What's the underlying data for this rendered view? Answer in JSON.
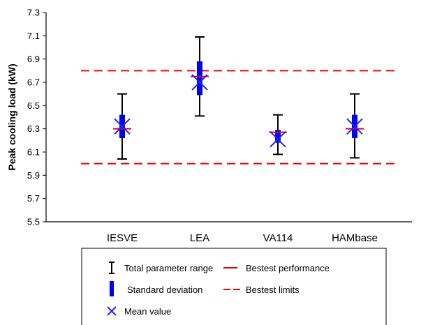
{
  "chart_data": {
    "type": "scatter",
    "ylabel": "Peak cooling load (kW)",
    "xlabel": "",
    "title": "",
    "ylim": [
      5.5,
      7.3
    ],
    "yticks": [
      5.5,
      5.7,
      5.9,
      6.1,
      6.3,
      6.5,
      6.7,
      6.9,
      7.1,
      7.3
    ],
    "grid": false,
    "categories": [
      "IESVE",
      "LEA",
      "VA114",
      "HAMbase"
    ],
    "range_min": [
      6.04,
      6.41,
      6.08,
      6.05
    ],
    "range_max": [
      6.6,
      7.09,
      6.42,
      6.6
    ],
    "std_low": [
      6.22,
      6.59,
      6.18,
      6.22
    ],
    "std_high": [
      6.42,
      6.88,
      6.29,
      6.42
    ],
    "mean": [
      6.32,
      6.7,
      6.21,
      6.32
    ],
    "bestest_performance": [
      6.3,
      6.75,
      6.27,
      6.3
    ],
    "bestest_limits": [
      6.0,
      6.8
    ],
    "colors": {
      "range": "#000000",
      "std": "#0000ee",
      "mean": "#2222ff",
      "performance": "#ee0000",
      "limits": "#ee0000"
    },
    "legend": {
      "placement": "bottom",
      "items": [
        {
          "key": "range",
          "label": "Total parameter range"
        },
        {
          "key": "performance",
          "label": "Bestest performance"
        },
        {
          "key": "std",
          "label": "Standard deviation"
        },
        {
          "key": "limits",
          "label": "Bestest limits"
        },
        {
          "key": "mean",
          "label": "Mean value"
        }
      ]
    }
  }
}
